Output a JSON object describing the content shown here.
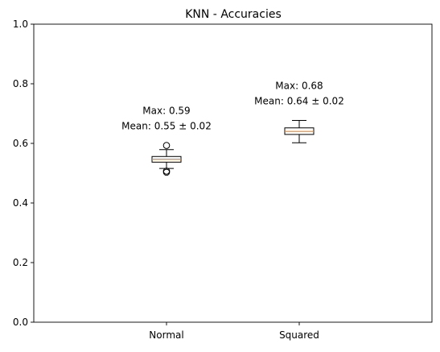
{
  "chart_data": {
    "type": "box",
    "title": "KNN - Accuracies",
    "xlabel": "",
    "ylabel": "",
    "ylim": [
      0,
      1
    ],
    "yticks": [
      "0.0",
      "0.2",
      "0.4",
      "0.6",
      "0.8",
      "1.0"
    ],
    "categories": [
      "Normal",
      "Squared"
    ],
    "boxes": [
      {
        "category": "Normal",
        "min": 0.516,
        "q1": 0.537,
        "median": 0.547,
        "q3": 0.556,
        "max": 0.579,
        "outliers": [
          0.593,
          0.507,
          0.503
        ],
        "annotation_max": "Max: 0.59",
        "annotation_mean": "Mean: 0.55 ± 0.02"
      },
      {
        "category": "Squared",
        "min": 0.602,
        "q1": 0.63,
        "median": 0.64,
        "q3": 0.652,
        "max": 0.677,
        "outliers": [],
        "annotation_max": "Max: 0.68",
        "annotation_mean": "Mean: 0.64 ± 0.02"
      }
    ],
    "grid": false,
    "legend": "none",
    "colors": {
      "box": "#000000",
      "median": "#ff7f0e",
      "background": "#ffffff"
    }
  }
}
